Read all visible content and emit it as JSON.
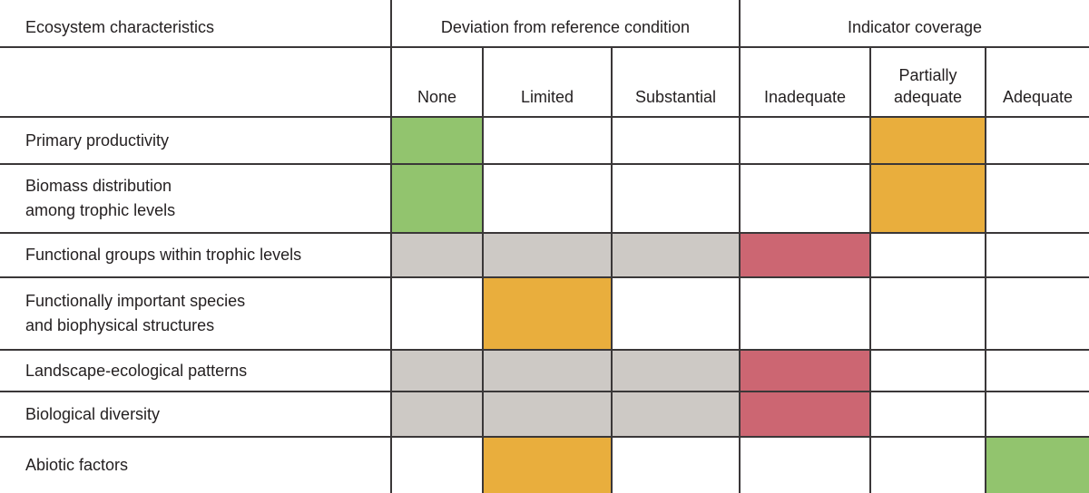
{
  "chart_data": {
    "type": "table",
    "row_header": "Ecosystem characteristics",
    "column_groups": [
      {
        "label": "Deviation from reference condition",
        "columns": [
          "None",
          "Limited",
          "Substantial"
        ]
      },
      {
        "label": "Indicator coverage",
        "columns": [
          "Inadequate",
          "Partially adequate",
          "Adequate"
        ]
      }
    ],
    "columns": [
      "None",
      "Limited",
      "Substantial",
      "Inadequate",
      "Partially adequate",
      "Adequate"
    ],
    "rows": [
      {
        "label": "Primary productivity",
        "cells": [
          "green",
          null,
          null,
          null,
          "orange",
          null
        ]
      },
      {
        "label": "Biomass distribution\namong trophic levels",
        "cells": [
          "green",
          null,
          null,
          null,
          "orange",
          null
        ]
      },
      {
        "label": "Functional groups within trophic levels",
        "cells": [
          "gray",
          "gray",
          "gray",
          "red",
          null,
          null
        ]
      },
      {
        "label": "Functionally important species\nand biophysical structures",
        "cells": [
          null,
          "orange",
          null,
          null,
          null,
          null
        ]
      },
      {
        "label": "Landscape-ecological patterns",
        "cells": [
          "gray",
          "gray",
          "gray",
          "red",
          null,
          null
        ]
      },
      {
        "label": "Biological diversity",
        "cells": [
          "gray",
          "gray",
          "gray",
          "red",
          null,
          null
        ]
      },
      {
        "label": "Abiotic factors",
        "cells": [
          null,
          "orange",
          null,
          null,
          null,
          "green"
        ]
      }
    ],
    "cell_colors": {
      "green": "#92c46e",
      "orange": "#e9ae3d",
      "red": "#cc6672",
      "gray": "#cdc9c5"
    }
  }
}
